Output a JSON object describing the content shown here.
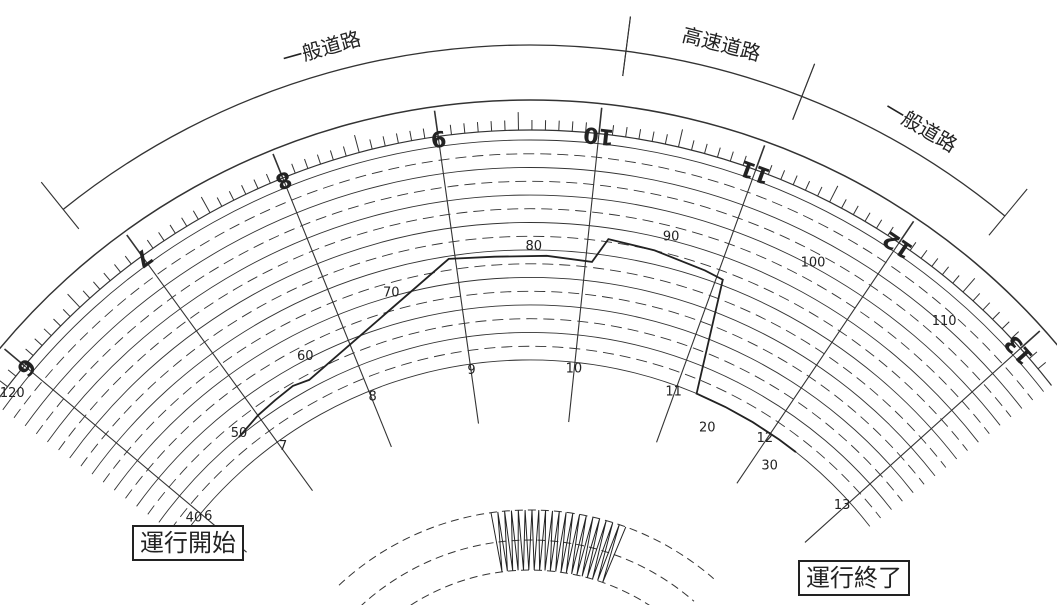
{
  "segments": [
    {
      "label": "一般道路",
      "from": 6.8,
      "to": 10.1
    },
    {
      "label": "高速道路",
      "from": 10.1,
      "to": 11.1
    },
    {
      "label": "一般道路",
      "from": 11.1,
      "to": 12.4
    }
  ],
  "hours": [
    "6",
    "7",
    "8",
    "9",
    "10",
    "11",
    "12",
    "13"
  ],
  "speed_labels": [
    {
      "text": "120",
      "hour": 5.8
    },
    {
      "text": "50",
      "hour": 6.75
    },
    {
      "text": "60",
      "hour": 7.6
    },
    {
      "text": "70",
      "hour": 8.45
    },
    {
      "text": "80",
      "hour": 9.6
    },
    {
      "text": "90",
      "hour": 10.6
    },
    {
      "text": "100",
      "hour": 11.6
    },
    {
      "text": "110",
      "hour": 12.55
    },
    {
      "text": "40",
      "hour": 5.9
    },
    {
      "text": "20",
      "hour": 11.45
    },
    {
      "text": "30",
      "hour": 12.2
    }
  ],
  "chart_data": {
    "type": "line",
    "x": [
      6.75,
      7.0,
      7.2,
      7.4,
      7.55,
      8.95,
      9.3,
      9.7,
      10.05,
      10.15,
      10.5,
      10.9,
      11.05,
      11.2,
      11.5,
      11.8,
      12.1,
      12.3
    ],
    "y": [
      50,
      52,
      53,
      54,
      53,
      79,
      78,
      78,
      77,
      86,
      85,
      83,
      82,
      22,
      23,
      25,
      27,
      28
    ]
  },
  "callouts": {
    "start": "運行開始",
    "end": "運行終了"
  }
}
